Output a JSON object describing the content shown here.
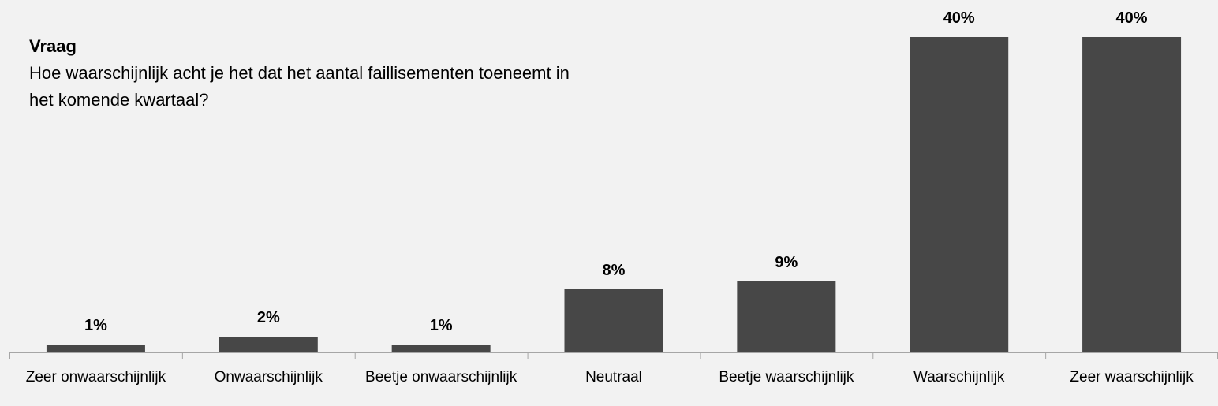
{
  "question": {
    "title": "Vraag",
    "text": "Hoe waarschijnlijk acht je het dat het aantal faillisementen toeneemt in het komende kwartaal?"
  },
  "colors": {
    "background": "#f2f2f2",
    "bar": "#474747",
    "axis": "#a6a6a6",
    "text": "#000000"
  },
  "chart_data": {
    "type": "bar",
    "title": "",
    "xlabel": "",
    "ylabel": "",
    "categories": [
      "Zeer onwaarschijnlijk",
      "Onwaarschijnlijk",
      "Beetje onwaarschijnlijk",
      "Neutraal",
      "Beetje waarschijnlijk",
      "Waarschijnlijk",
      "Zeer waarschijnlijk"
    ],
    "values": [
      1,
      2,
      1,
      8,
      9,
      40,
      40
    ],
    "value_labels": [
      "1%",
      "2%",
      "1%",
      "8%",
      "9%",
      "40%",
      "40%"
    ],
    "unit": "%",
    "ylim": [
      0,
      40
    ],
    "grid": false,
    "legend": "none"
  }
}
